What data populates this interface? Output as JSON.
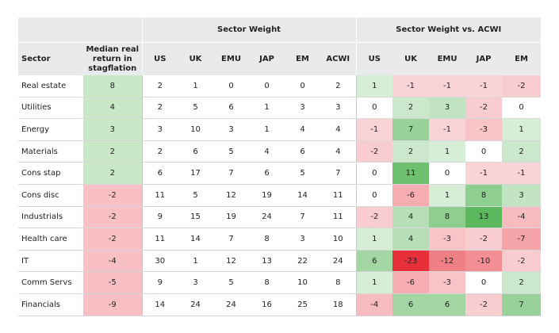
{
  "header": {
    "sector_weight": "Sector Weight",
    "sector_weight_vs_acwi": "Sector Weight vs. ACWI",
    "sector": "Sector",
    "median_real_return": "Median real return in stagflation",
    "weight_cols": [
      "US",
      "UK",
      "EMU",
      "JAP",
      "EM",
      "ACWI"
    ],
    "diff_cols": [
      "US",
      "UK",
      "EMU",
      "JAP",
      "EM"
    ]
  },
  "colors": {
    "header_bg": "#e9eaeb",
    "positive_base": "#5cb85c",
    "negative_base": "#e8303a"
  },
  "rows": [
    {
      "sector": "Real estate",
      "median": "8",
      "weights": [
        "2",
        "1",
        "0",
        "0",
        "0",
        "2"
      ],
      "diffs": [
        "1",
        "-1",
        "-1",
        "-1",
        "-2"
      ]
    },
    {
      "sector": "Utilities",
      "median": "4",
      "weights": [
        "2",
        "5",
        "6",
        "1",
        "3",
        "3"
      ],
      "diffs": [
        "0",
        "2",
        "3",
        "-2",
        "0"
      ]
    },
    {
      "sector": "Energy",
      "median": "3",
      "weights": [
        "3",
        "10",
        "3",
        "1",
        "4",
        "4"
      ],
      "diffs": [
        "-1",
        "7",
        "-1",
        "-3",
        "1"
      ]
    },
    {
      "sector": "Materials",
      "median": "2",
      "weights": [
        "2",
        "6",
        "5",
        "4",
        "6",
        "4"
      ],
      "diffs": [
        "-2",
        "2",
        "1",
        "0",
        "2"
      ]
    },
    {
      "sector": "Cons stap",
      "median": "2",
      "weights": [
        "6",
        "17",
        "7",
        "6",
        "5",
        "7"
      ],
      "diffs": [
        "0",
        "11",
        "0",
        "-1",
        "-1"
      ]
    },
    {
      "sector": "Cons disc",
      "median": "-2",
      "weights": [
        "11",
        "5",
        "12",
        "19",
        "14",
        "11"
      ],
      "diffs": [
        "0",
        "-6",
        "1",
        "8",
        "3"
      ]
    },
    {
      "sector": "Industrials",
      "median": "-2",
      "weights": [
        "9",
        "15",
        "19",
        "24",
        "7",
        "11"
      ],
      "diffs": [
        "-2",
        "4",
        "8",
        "13",
        "-4"
      ]
    },
    {
      "sector": "Health care",
      "median": "-2",
      "weights": [
        "11",
        "14",
        "7",
        "8",
        "3",
        "10"
      ],
      "diffs": [
        "1",
        "4",
        "-3",
        "-2",
        "-7"
      ]
    },
    {
      "sector": "IT",
      "median": "-4",
      "weights": [
        "30",
        "1",
        "12",
        "13",
        "22",
        "24"
      ],
      "diffs": [
        "6",
        "-23",
        "-12",
        "-10",
        "-2"
      ]
    },
    {
      "sector": "Comm Servs",
      "median": "-5",
      "weights": [
        "9",
        "3",
        "5",
        "8",
        "10",
        "8"
      ],
      "diffs": [
        "1",
        "-6",
        "-3",
        "0",
        "2"
      ]
    },
    {
      "sector": "Financials",
      "median": "-9",
      "weights": [
        "14",
        "24",
        "24",
        "16",
        "25",
        "18"
      ],
      "diffs": [
        "-4",
        "6",
        "6",
        "-2",
        "7"
      ]
    }
  ]
}
